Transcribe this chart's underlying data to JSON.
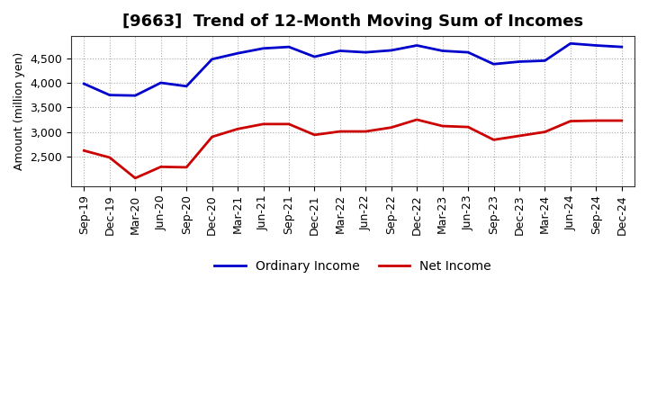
{
  "title": "[9663]  Trend of 12-Month Moving Sum of Incomes",
  "ylabel": "Amount (million yen)",
  "x_labels": [
    "Sep-19",
    "Dec-19",
    "Mar-20",
    "Jun-20",
    "Sep-20",
    "Dec-20",
    "Mar-21",
    "Jun-21",
    "Sep-21",
    "Dec-21",
    "Mar-22",
    "Jun-22",
    "Sep-22",
    "Dec-22",
    "Mar-23",
    "Jun-23",
    "Sep-23",
    "Dec-23",
    "Mar-24",
    "Jun-24",
    "Sep-24",
    "Dec-24"
  ],
  "ordinary_income": [
    3980,
    3750,
    3740,
    4000,
    3930,
    4480,
    4600,
    4700,
    4730,
    4530,
    4650,
    4620,
    4660,
    4760,
    4650,
    4620,
    4380,
    4430,
    4450,
    4800,
    4760,
    4730
  ],
  "net_income": [
    2620,
    2480,
    2060,
    2290,
    2280,
    2900,
    3060,
    3160,
    3160,
    2940,
    3010,
    3010,
    3090,
    3250,
    3120,
    3100,
    2840,
    2920,
    3000,
    3220,
    3230,
    3230
  ],
  "ordinary_color": "#0000cc",
  "net_color": "#cc0000",
  "ylim_min": 1900,
  "ylim_max": 4950,
  "yticks": [
    2500,
    3000,
    3500,
    4000,
    4500
  ],
  "background_color": "#ffffff",
  "grid_color": "#aaaaaa",
  "title_fontsize": 13,
  "axis_fontsize": 9,
  "tick_fontsize": 9,
  "legend_fontsize": 10
}
